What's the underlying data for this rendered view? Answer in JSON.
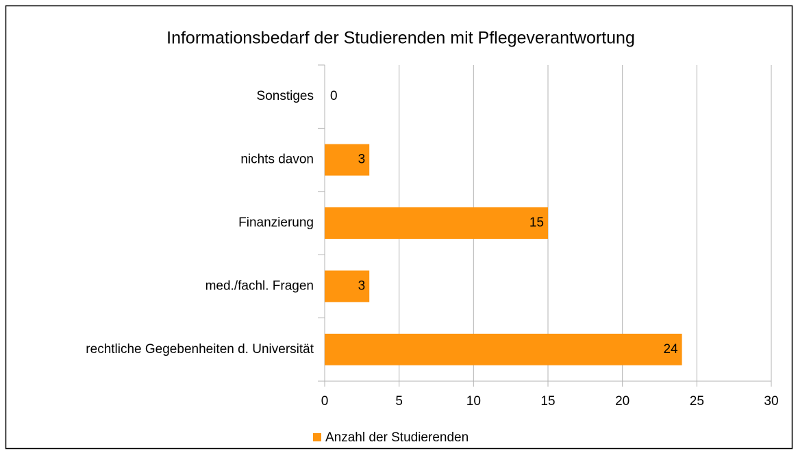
{
  "chart_data": {
    "type": "barh",
    "title": "Informationsbedarf der Studierenden mit Pflegeverantwortung",
    "categories": [
      "Sonstiges",
      "nichts davon",
      "Finanzierung",
      "med./fachl. Fragen",
      "rechtliche Gegebenheiten d. Universität"
    ],
    "series": [
      {
        "name": "Anzahl der Studierenden",
        "color": "#ff950e",
        "values": [
          0,
          3,
          15,
          3,
          24
        ]
      }
    ],
    "xlim": [
      0,
      30
    ],
    "xticks": [
      0,
      5,
      10,
      15,
      20,
      25,
      30
    ],
    "grid": true,
    "legend": "bottom"
  }
}
